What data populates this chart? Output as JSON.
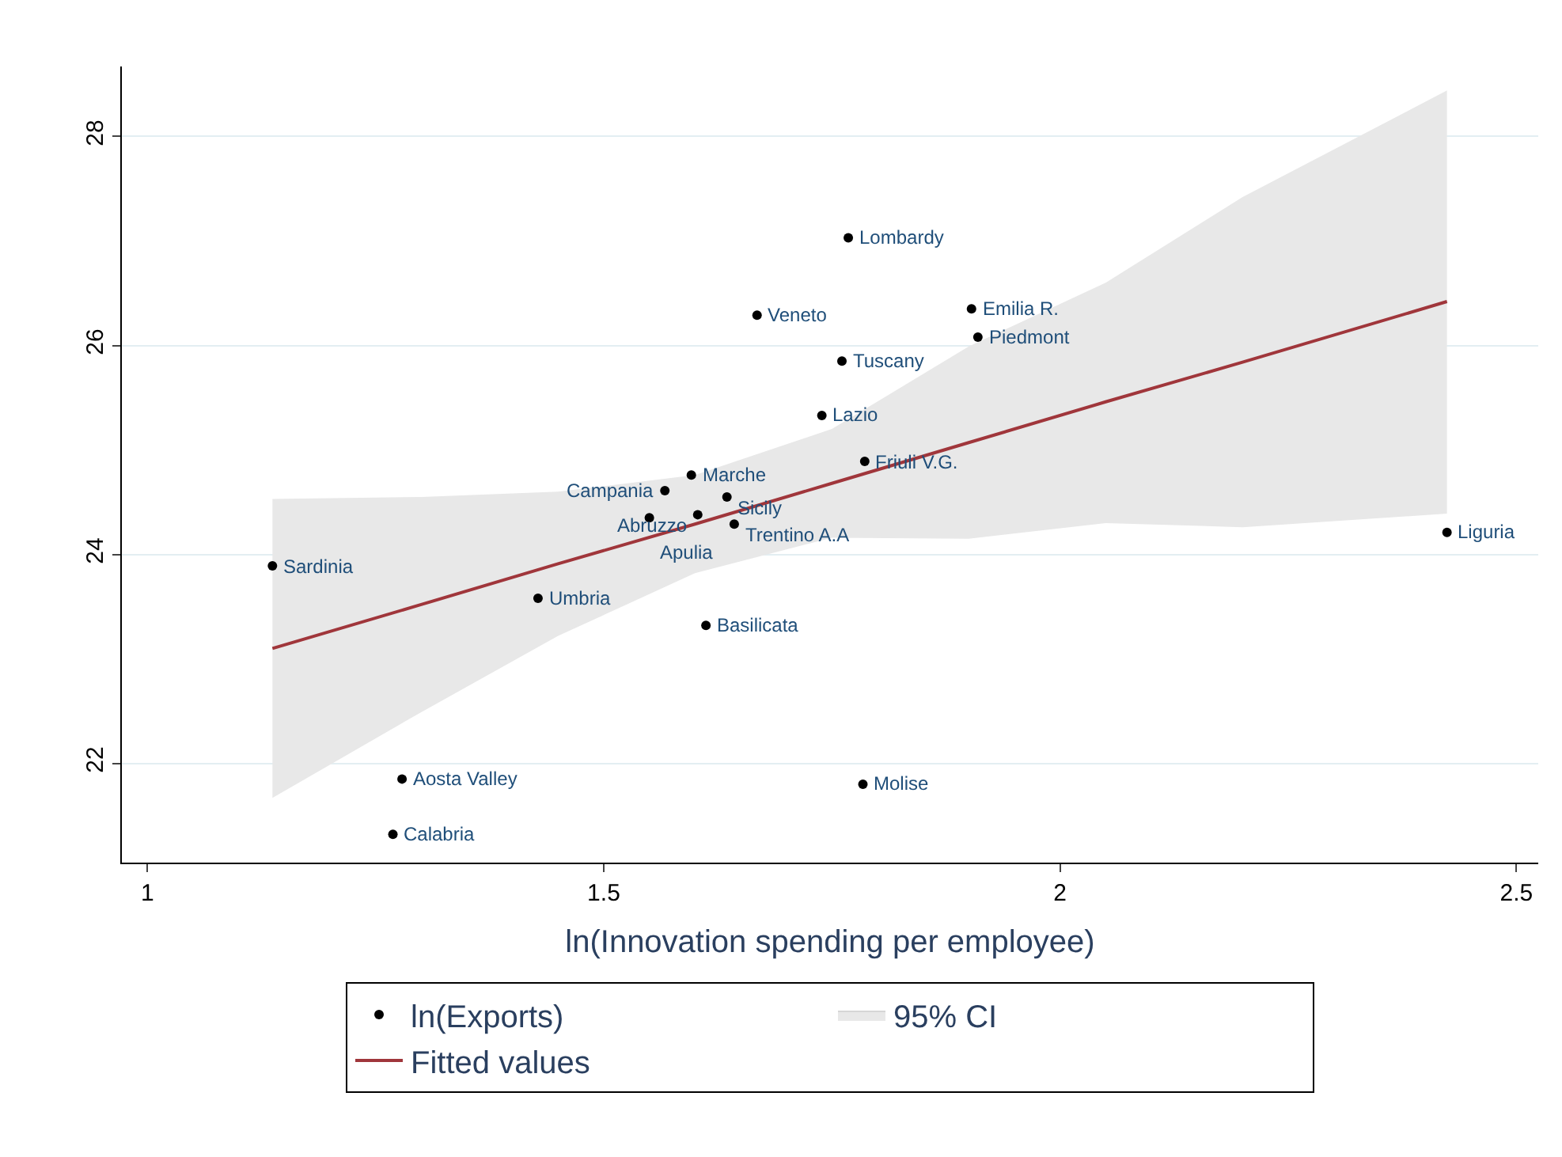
{
  "chart_data": {
    "type": "scatter",
    "xlabel": "ln(Innovation spending per employee)",
    "xlim": [
      0.972,
      2.524
    ],
    "xticks": [
      1,
      1.5,
      2,
      2.5
    ],
    "ylim": [
      21.05,
      28.67
    ],
    "yticks": [
      22,
      24,
      26,
      28
    ],
    "grid": "y",
    "legend": "bottom",
    "series": [
      {
        "name": "ln(Exports)",
        "marker": "circle",
        "color": "#000000",
        "x": [
          1.768,
          1.903,
          1.91,
          1.668,
          1.761,
          1.739,
          1.786,
          1.596,
          1.567,
          1.635,
          1.603,
          1.55,
          1.643,
          2.424,
          1.137,
          1.428,
          1.612,
          1.279,
          1.784,
          1.269
        ],
        "values": [
          27.03,
          26.35,
          26.08,
          26.29,
          25.85,
          25.33,
          24.89,
          24.76,
          24.61,
          24.55,
          24.38,
          24.35,
          24.29,
          24.21,
          23.89,
          23.58,
          23.32,
          21.85,
          21.8,
          21.32
        ]
      },
      {
        "name": "95% CI",
        "type": "area",
        "color": "#e8e8e8"
      },
      {
        "name": "Fitted values",
        "type": "line",
        "color": "#a0363b",
        "x": [
          1.137,
          1.3,
          1.45,
          1.6,
          1.75,
          1.9,
          2.05,
          2.2,
          2.424
        ],
        "values": [
          23.1,
          23.52,
          23.91,
          24.29,
          24.68,
          25.07,
          25.46,
          25.84,
          26.42
        ],
        "lower": [
          21.67,
          22.49,
          23.22,
          23.82,
          24.16,
          24.15,
          24.3,
          24.26,
          24.39
        ],
        "upper": [
          24.53,
          24.55,
          24.6,
          24.76,
          25.2,
          25.99,
          26.6,
          27.42,
          28.44
        ]
      }
    ],
    "annotations": [
      {
        "text": "Lombardy",
        "x": 1.768,
        "y": 27.03
      },
      {
        "text": "Emilia R.",
        "x": 1.903,
        "y": 26.35
      },
      {
        "text": "Piedmont",
        "x": 1.91,
        "y": 26.08
      },
      {
        "text": "Veneto",
        "x": 1.668,
        "y": 26.29
      },
      {
        "text": "Tuscany",
        "x": 1.761,
        "y": 25.85
      },
      {
        "text": "Lazio",
        "x": 1.739,
        "y": 25.33
      },
      {
        "text": "Friuli V.G.",
        "x": 1.786,
        "y": 24.89
      },
      {
        "text": "Marche",
        "x": 1.596,
        "y": 24.76
      },
      {
        "text": "Campania",
        "x": 1.567,
        "y": 24.61
      },
      {
        "text": "Sicily",
        "x": 1.635,
        "y": 24.55
      },
      {
        "text": "Abruzzo",
        "x": 1.603,
        "y": 24.38
      },
      {
        "text": "Apulia",
        "x": 1.55,
        "y": 24.35
      },
      {
        "text": "Trentino A.A",
        "x": 1.643,
        "y": 24.29
      },
      {
        "text": "Liguria",
        "x": 2.424,
        "y": 24.21
      },
      {
        "text": "Sardinia",
        "x": 1.137,
        "y": 23.89
      },
      {
        "text": "Umbria",
        "x": 1.428,
        "y": 23.58
      },
      {
        "text": "Basilicata",
        "x": 1.612,
        "y": 23.32
      },
      {
        "text": "Aosta Valley",
        "x": 1.279,
        "y": 21.85
      },
      {
        "text": "Molise",
        "x": 1.784,
        "y": 21.8
      },
      {
        "text": "Calabria",
        "x": 1.269,
        "y": 21.32
      }
    ]
  }
}
